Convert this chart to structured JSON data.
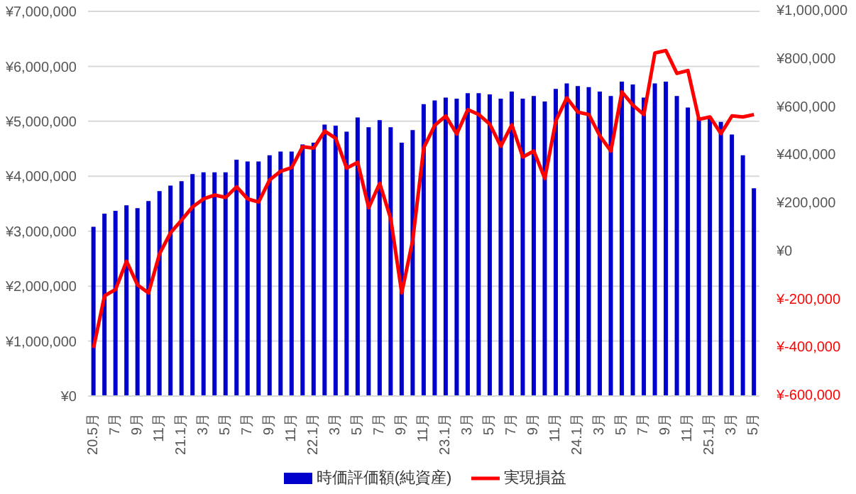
{
  "chart_data": {
    "type": "bar",
    "categories": [
      "20.5月",
      null,
      "7月",
      null,
      "9月",
      null,
      "11月",
      null,
      "21.1月",
      null,
      "3月",
      null,
      "5月",
      null,
      "7月",
      null,
      "9月",
      null,
      "11月",
      null,
      "22.1月",
      null,
      "3月",
      null,
      "5月",
      null,
      "7月",
      null,
      "9月",
      null,
      "11月",
      null,
      "23.1月",
      null,
      "3月",
      null,
      "5月",
      null,
      "7月",
      null,
      "9月",
      null,
      "11月",
      null,
      "24.1月",
      null,
      "3月",
      null,
      "5月",
      null,
      "7月",
      null,
      "9月",
      null,
      "11月",
      null,
      "25.1月",
      null,
      "3月",
      null,
      "5月"
    ],
    "series": [
      {
        "name": "時価評価額(純資産)",
        "color": "#0000cc",
        "values": [
          3080000,
          3320000,
          3370000,
          3470000,
          3420000,
          3550000,
          3730000,
          3830000,
          3910000,
          4040000,
          4070000,
          4070000,
          4070000,
          4300000,
          4270000,
          4270000,
          4380000,
          4450000,
          4450000,
          4580000,
          4610000,
          4940000,
          4920000,
          4810000,
          5070000,
          4890000,
          5020000,
          4890000,
          4610000,
          4840000,
          5310000,
          5380000,
          5430000,
          5410000,
          5510000,
          5510000,
          5490000,
          5410000,
          5540000,
          5410000,
          5460000,
          5360000,
          5590000,
          5690000,
          5640000,
          5620000,
          5540000,
          5460000,
          5720000,
          5670000,
          5430000,
          5690000,
          5720000,
          5460000,
          5250000,
          5060000,
          5060000,
          4990000,
          4760000,
          4380000,
          3780000
        ]
      },
      {
        "name": "実現損益",
        "type": "line",
        "axis": "y2",
        "color": "#ff0000",
        "values": [
          -400000,
          -183000,
          -157000,
          -39000,
          -138000,
          -171000,
          -8000,
          79000,
          132000,
          187000,
          220000,
          236000,
          226000,
          270000,
          220000,
          207000,
          299000,
          335000,
          350000,
          437000,
          431000,
          502000,
          472000,
          348000,
          372000,
          183000,
          285000,
          138000,
          -171000,
          49000,
          433000,
          526000,
          565000,
          490000,
          591000,
          571000,
          531000,
          439000,
          528000,
          394000,
          419000,
          305000,
          545000,
          640000,
          581000,
          571000,
          482000,
          419000,
          665000,
          610000,
          571000,
          827000,
          837000,
          742000,
          754000,
          551000,
          561000,
          492000,
          565000,
          561000,
          571000
        ]
      }
    ],
    "ylim": [
      0,
      7000000
    ],
    "yticks": [
      {
        "value": 0,
        "label": "¥0"
      },
      {
        "value": 1000000,
        "label": "¥1,000,000"
      },
      {
        "value": 2000000,
        "label": "¥2,000,000"
      },
      {
        "value": 3000000,
        "label": "¥3,000,000"
      },
      {
        "value": 4000000,
        "label": "¥4,000,000"
      },
      {
        "value": 5000000,
        "label": "¥5,000,000"
      },
      {
        "value": 6000000,
        "label": "¥6,000,000"
      },
      {
        "value": 7000000,
        "label": "¥7,000,000"
      }
    ],
    "y2lim": [
      -600000,
      1000000
    ],
    "y2ticks": [
      {
        "value": -600000,
        "label": "¥-600,000"
      },
      {
        "value": -400000,
        "label": "¥-400,000"
      },
      {
        "value": -200000,
        "label": "¥-200,000"
      },
      {
        "value": 0,
        "label": "¥0"
      },
      {
        "value": 200000,
        "label": "¥200,000"
      },
      {
        "value": 400000,
        "label": "¥400,000"
      },
      {
        "value": 600000,
        "label": "¥600,000"
      },
      {
        "value": 800000,
        "label": "¥800,000"
      },
      {
        "value": 1000000,
        "label": "¥1,000,000"
      }
    ],
    "grid": "y",
    "legend": "bottom",
    "marker": "none",
    "line_style": "solid"
  }
}
